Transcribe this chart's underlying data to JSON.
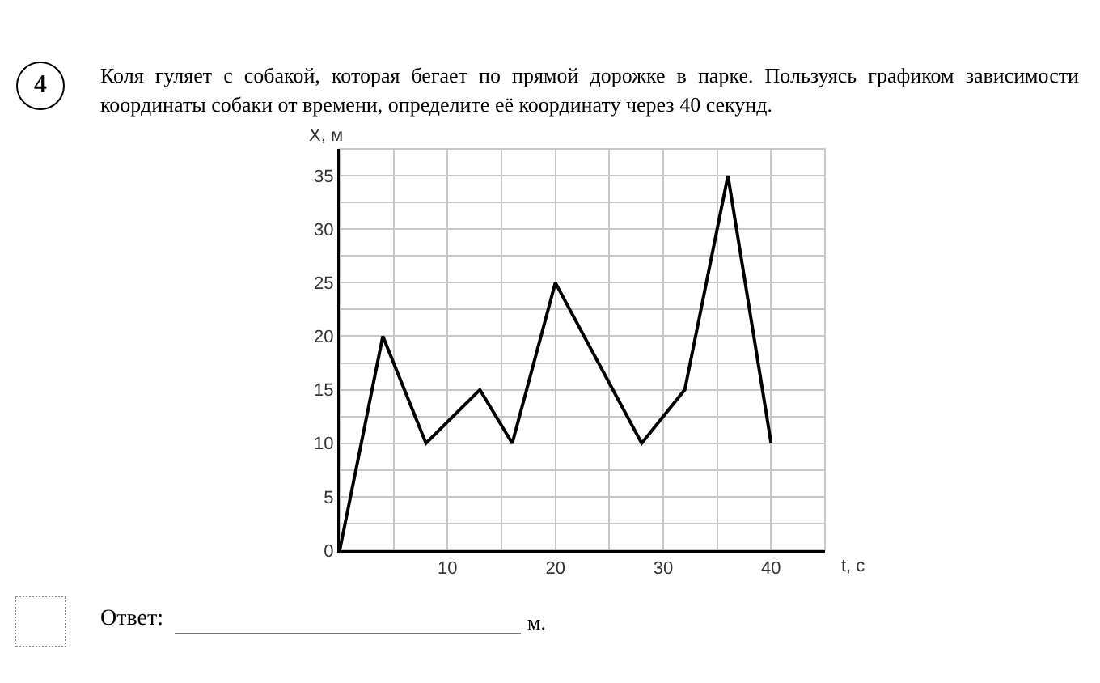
{
  "chart_data": {
    "type": "line",
    "title": "Коля гуляет с собакой, которая бегает по прямой дорожке в парке. Пользуясь графиком зависимости координаты собаки от времени, определите её координату через 40 секунд.",
    "xlabel": "t, с",
    "ylabel": "X, м",
    "annotations": [
      "4",
      "Ответ:",
      "м."
    ],
    "x": [
      0,
      4,
      8,
      13,
      16,
      20,
      28,
      32,
      36,
      40
    ],
    "series": [
      {
        "color": "#000000",
        "values": [
          0,
          20,
          10,
          15,
          10,
          25,
          10,
          15,
          35,
          10
        ]
      }
    ],
    "xlim": [
      0,
      45
    ],
    "xticks": [
      {
        "value": 5,
        "label": null
      },
      10,
      {
        "value": 15,
        "label": null
      },
      20,
      {
        "value": 25,
        "label": null
      },
      30,
      {
        "value": 35,
        "label": null
      },
      40
    ],
    "ylim": [
      0,
      37.5
    ],
    "yticks": [
      0,
      {
        "value": 2.5,
        "label": null
      },
      5,
      {
        "value": 7.5,
        "label": null
      },
      10,
      {
        "value": 12.5,
        "label": null
      },
      15,
      {
        "value": 17.5,
        "label": null
      },
      20,
      {
        "value": 22.5,
        "label": null
      },
      25,
      {
        "value": 27.5,
        "label": null
      },
      30,
      {
        "value": 32.5,
        "label": null
      },
      35
    ],
    "grid": true,
    "marker": "none",
    "line_style": "solid"
  }
}
